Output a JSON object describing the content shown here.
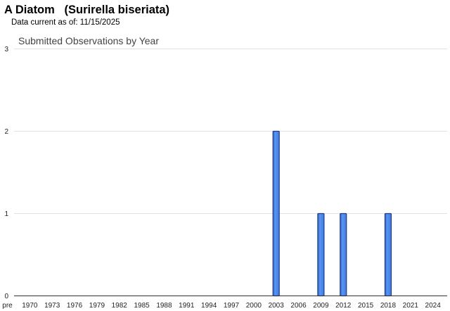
{
  "header": {
    "title": "A Diatom   (Surirella biseriata)",
    "data_current": "Data current as of: 11/15/2025"
  },
  "chart_data": {
    "type": "bar",
    "title": "Submitted Observations by Year",
    "xlabel": "",
    "ylabel": "",
    "ylim": [
      0,
      3
    ],
    "yticks": [
      0,
      1,
      2,
      3
    ],
    "grid": true,
    "x_tick_labels": [
      "pre",
      "1970",
      "1973",
      "1976",
      "1979",
      "1982",
      "1985",
      "1988",
      "1991",
      "1994",
      "1997",
      "2000",
      "2003",
      "2006",
      "2009",
      "2012",
      "2015",
      "2018",
      "2021",
      "2024"
    ],
    "categories": [
      "2003",
      "2009",
      "2012",
      "2018"
    ],
    "values": [
      2,
      1,
      1,
      1
    ],
    "bar_color": "#3f7be2",
    "bar_edge_color": "#1e3f8a"
  }
}
